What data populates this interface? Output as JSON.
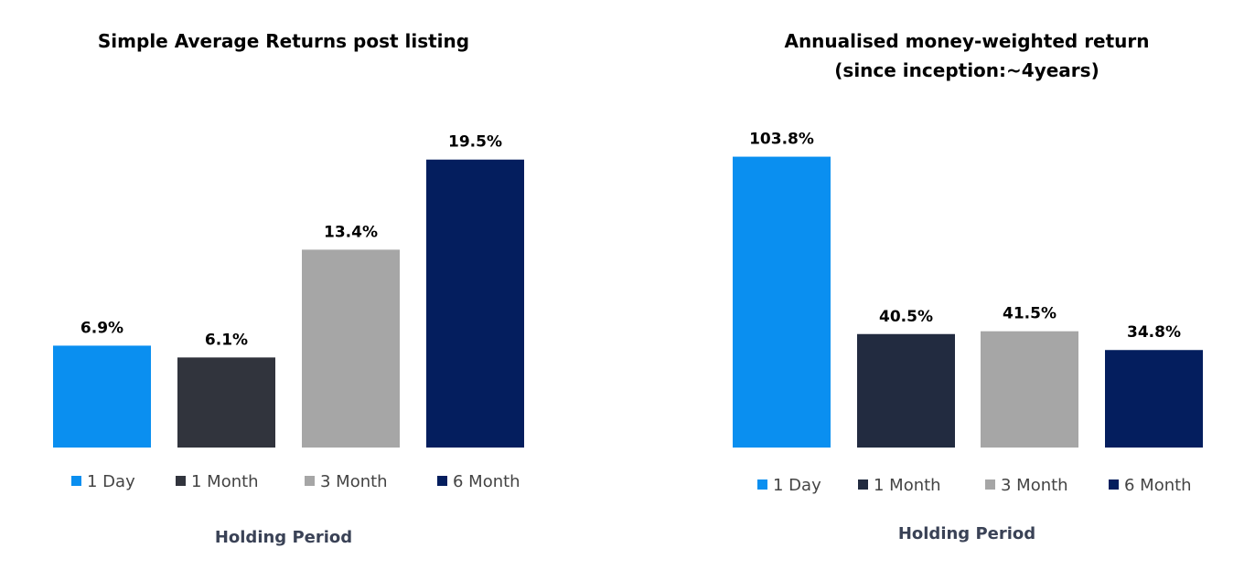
{
  "chart_data": [
    {
      "type": "bar",
      "title": [
        "Simple Average Returns post listing"
      ],
      "categories": [
        "1 Day",
        "1 Month",
        "3 Month",
        "6 Month"
      ],
      "values": [
        6.9,
        6.1,
        13.4,
        19.5
      ],
      "value_labels": [
        "6.9%",
        "6.1%",
        "13.4%",
        "19.5%"
      ],
      "colors": [
        "#0a8ff0",
        "#31343d",
        "#a6a6a6",
        "#041e5e"
      ],
      "xlabel": "Holding Period",
      "ylabel": "",
      "ylim": [
        0,
        22.7
      ],
      "grid": false,
      "legend": "bottom"
    },
    {
      "type": "bar",
      "title": [
        "Annualised money-weighted return",
        "(since inception:~4years)"
      ],
      "categories": [
        "1 Day",
        "1 Month",
        "3 Month",
        "6 Month"
      ],
      "values": [
        103.8,
        40.5,
        41.5,
        34.8
      ],
      "value_labels": [
        "103.8%",
        "40.5%",
        "41.5%",
        "34.8%"
      ],
      "colors": [
        "#0a8ff0",
        "#222b40",
        "#a6a6a6",
        "#041e5e"
      ],
      "xlabel": "Holding Period",
      "ylabel": "",
      "ylim": [
        0,
        118
      ],
      "grid": false,
      "legend": "bottom"
    }
  ]
}
